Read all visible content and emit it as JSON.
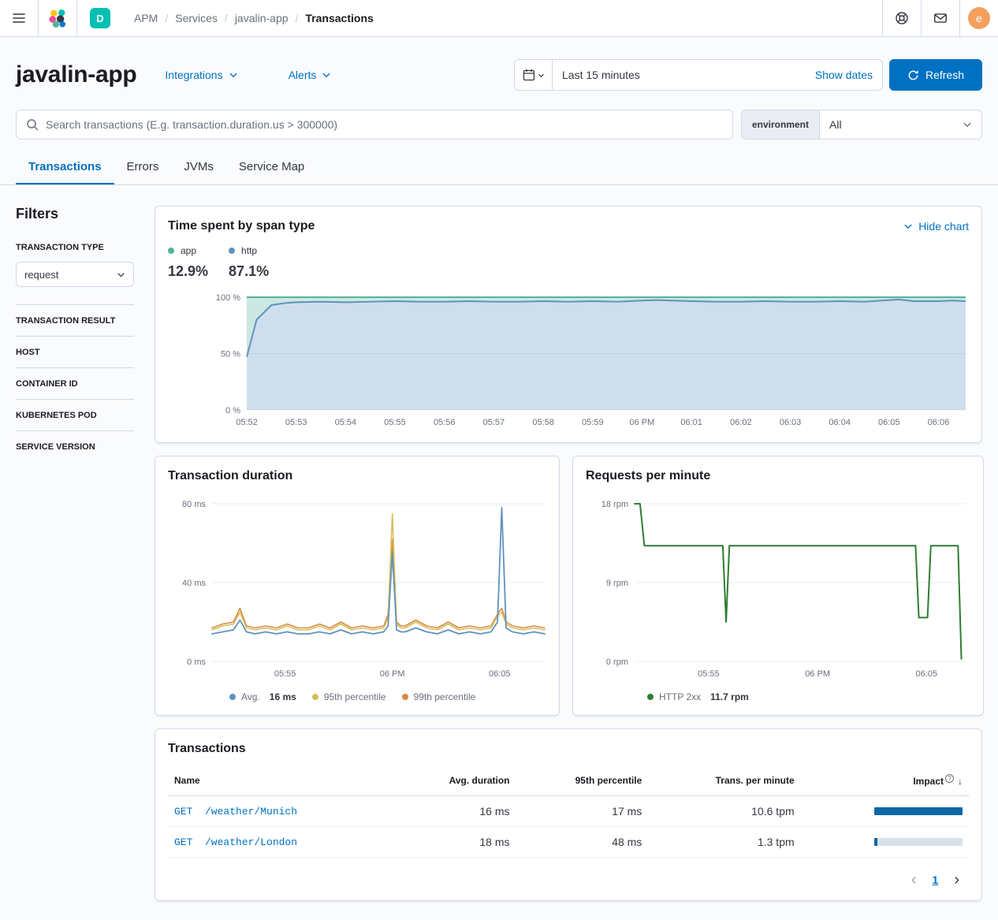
{
  "colors": {
    "primary": "#0071c2",
    "space_badge_bg": "#00bfb3",
    "avatar_bg": "#f3a05e",
    "app_green": "#54b399",
    "http_blue": "#6092c0",
    "p95_yellow": "#d6bf57",
    "p99_orange": "#da8b45",
    "rpm_green": "#2e7d32",
    "impact_fill": "#0d67a3",
    "impact_track": "#d9e0ea"
  },
  "topbar": {
    "breadcrumbs": [
      "APM",
      "Services",
      "javalin-app",
      "Transactions"
    ],
    "space_badge": "D",
    "avatar_initial": "e"
  },
  "header": {
    "title": "javalin-app",
    "integrations": "Integrations",
    "alerts": "Alerts",
    "time_range": "Last 15 minutes",
    "show_dates": "Show dates",
    "refresh": "Refresh"
  },
  "search": {
    "placeholder": "Search transactions (E.g. transaction.duration.us > 300000)",
    "environment_label": "environment",
    "environment_value": "All"
  },
  "tabs": [
    {
      "label": "Transactions"
    },
    {
      "label": "Errors"
    },
    {
      "label": "JVMs"
    },
    {
      "label": "Service Map"
    }
  ],
  "filters": {
    "heading": "Filters",
    "type_label": "TRANSACTION TYPE",
    "type_value": "request",
    "sections": [
      "TRANSACTION RESULT",
      "HOST",
      "CONTAINER ID",
      "KUBERNETES POD",
      "SERVICE VERSION"
    ]
  },
  "panels": {
    "span_type_title": "Time spent by span type",
    "hide_chart": "Hide chart",
    "duration_title": "Transaction duration",
    "rpm_title": "Requests per minute",
    "table_title": "Transactions"
  },
  "chart_data": [
    {
      "type": "area",
      "title": "Time spent by span type",
      "stacked_percent": true,
      "legend": [
        {
          "label": "app",
          "value": "12.9%",
          "color": "#54b399"
        },
        {
          "label": "http",
          "value": "87.1%",
          "color": "#6092c0"
        }
      ],
      "ylim": [
        0,
        100
      ],
      "xlim": [
        0,
        14.55
      ],
      "yticks": [
        {
          "v": 0,
          "label": "0 %"
        },
        {
          "v": 50,
          "label": "50 %"
        },
        {
          "v": 100,
          "label": "100 %"
        }
      ],
      "xticks": [
        {
          "v": 0,
          "label": "05:52"
        },
        {
          "v": 1,
          "label": "05:53"
        },
        {
          "v": 2,
          "label": "05:54"
        },
        {
          "v": 3,
          "label": "05:55"
        },
        {
          "v": 4,
          "label": "05:56"
        },
        {
          "v": 5,
          "label": "05:57"
        },
        {
          "v": 6,
          "label": "05:58"
        },
        {
          "v": 7,
          "label": "05:59"
        },
        {
          "v": 8,
          "label": "06 PM"
        },
        {
          "v": 9,
          "label": "06:01"
        },
        {
          "v": 10,
          "label": "06:02"
        },
        {
          "v": 11,
          "label": "06:03"
        },
        {
          "v": 12,
          "label": "06:04"
        },
        {
          "v": 13,
          "label": "06:05"
        },
        {
          "v": 14,
          "label": "06:06"
        }
      ],
      "x": [
        0,
        0.2,
        0.5,
        0.8,
        1,
        1.5,
        2,
        2.5,
        3,
        3.5,
        4,
        4.5,
        5,
        5.5,
        6,
        6.5,
        7,
        7.5,
        8,
        8.3,
        8.6,
        9,
        9.5,
        10,
        10.5,
        11,
        11.5,
        12,
        12.5,
        13,
        13.2,
        13.5,
        14,
        14.3,
        14.55
      ],
      "series": [
        {
          "name": "http",
          "color": "#6092c0",
          "values": [
            47,
            80,
            93,
            95,
            95.5,
            96,
            95.5,
            96,
            96.5,
            96,
            96,
            96.5,
            96,
            96,
            96.5,
            96,
            96.5,
            96,
            97,
            97.5,
            97,
            96.5,
            96,
            96,
            96.5,
            96,
            96,
            96.5,
            96,
            97.5,
            98,
            96.5,
            96.5,
            97,
            96.5
          ]
        },
        {
          "name": "app",
          "color": "#54b399",
          "note": "remainder of stack to 100%"
        }
      ]
    },
    {
      "type": "line",
      "title": "Transaction duration",
      "legend": [
        {
          "label": "Avg.",
          "value": "16 ms",
          "color": "#6092c0"
        },
        {
          "label": "95th percentile",
          "value": "",
          "color": "#d6bf57"
        },
        {
          "label": "99th percentile",
          "value": "",
          "color": "#da8b45"
        }
      ],
      "ylim": [
        0,
        80
      ],
      "xlim": [
        0,
        15.5
      ],
      "yticks": [
        {
          "v": 0,
          "label": "0 ms"
        },
        {
          "v": 40,
          "label": "40 ms"
        },
        {
          "v": 80,
          "label": "80 ms"
        }
      ],
      "xticks": [
        {
          "v": 3.4,
          "label": "05:55"
        },
        {
          "v": 8.4,
          "label": "06 PM"
        },
        {
          "v": 13.4,
          "label": "06:05"
        }
      ],
      "x": [
        0,
        0.5,
        1,
        1.3,
        1.6,
        2,
        2.5,
        3,
        3.5,
        4,
        4.5,
        5,
        5.5,
        6,
        6.5,
        7,
        7.5,
        8,
        8.2,
        8.4,
        8.6,
        8.8,
        9,
        9.5,
        10,
        10.5,
        11,
        11.5,
        12,
        12.5,
        13,
        13.3,
        13.5,
        13.7,
        14,
        14.5,
        15,
        15.5
      ],
      "series": [
        {
          "name": "99th percentile",
          "color": "#da8b45",
          "width": 1.6,
          "values": [
            17,
            19,
            20,
            27,
            18,
            17,
            18,
            17,
            19,
            17,
            17,
            19,
            17,
            20,
            17,
            18,
            17,
            18,
            24,
            62,
            20,
            18,
            18,
            21,
            18,
            17,
            20,
            17,
            18,
            17,
            18,
            24,
            27,
            20,
            18,
            17,
            18,
            17
          ]
        },
        {
          "name": "95th percentile",
          "color": "#d6bf57",
          "width": 1.6,
          "values": [
            16,
            18,
            19,
            25,
            17,
            16,
            17,
            16,
            18,
            16,
            16,
            18,
            16,
            19,
            16,
            17,
            16,
            17,
            22,
            75,
            19,
            17,
            17,
            20,
            17,
            16,
            19,
            16,
            17,
            16,
            17,
            23,
            25,
            19,
            17,
            16,
            17,
            16
          ]
        },
        {
          "name": "Avg.",
          "color": "#6092c0",
          "width": 1.8,
          "values": [
            14,
            15,
            16,
            21,
            15,
            14,
            15,
            14,
            15,
            14,
            14,
            15,
            14,
            16,
            14,
            15,
            14,
            15,
            18,
            55,
            16,
            15,
            15,
            17,
            15,
            14,
            16,
            14,
            15,
            14,
            15,
            20,
            78,
            17,
            15,
            14,
            15,
            14
          ]
        }
      ]
    },
    {
      "type": "line",
      "title": "Requests per minute",
      "legend": [
        {
          "label": "HTTP 2xx",
          "value": "11.7 rpm",
          "color": "#2e7d32"
        }
      ],
      "ylim": [
        0,
        18
      ],
      "xlim": [
        0,
        15.2
      ],
      "yticks": [
        {
          "v": 0,
          "label": "0 rpm"
        },
        {
          "v": 9,
          "label": "9 rpm"
        },
        {
          "v": 18,
          "label": "18 rpm"
        }
      ],
      "xticks": [
        {
          "v": 3.4,
          "label": "05:55"
        },
        {
          "v": 8.4,
          "label": "06 PM"
        },
        {
          "v": 13.4,
          "label": "06:05"
        }
      ],
      "x": [
        0,
        0.25,
        0.45,
        3.9,
        4.05,
        4.2,
        4.35,
        4.5,
        12.9,
        13.05,
        13.45,
        13.6,
        14.7,
        14.85,
        15.0
      ],
      "series": [
        {
          "name": "HTTP 2xx",
          "color": "#2e7d32",
          "width": 2,
          "values": [
            18,
            18,
            13.2,
            13.2,
            13.2,
            4.5,
            13.2,
            13.2,
            13.2,
            5,
            5,
            13.2,
            13.2,
            13.2,
            0.3
          ]
        }
      ]
    }
  ],
  "table": {
    "columns": [
      "Name",
      "Avg. duration",
      "95th percentile",
      "Trans. per minute",
      "Impact"
    ],
    "rows": [
      {
        "name": "GET  /weather/Munich",
        "avg_duration": "16 ms",
        "p95": "17 ms",
        "tpm": "10.6 tpm",
        "impact_pct": 100
      },
      {
        "name": "GET  /weather/London",
        "avg_duration": "18 ms",
        "p95": "48 ms",
        "tpm": "1.3 tpm",
        "impact_pct": 4
      }
    ]
  },
  "pagination": {
    "page": "1"
  }
}
